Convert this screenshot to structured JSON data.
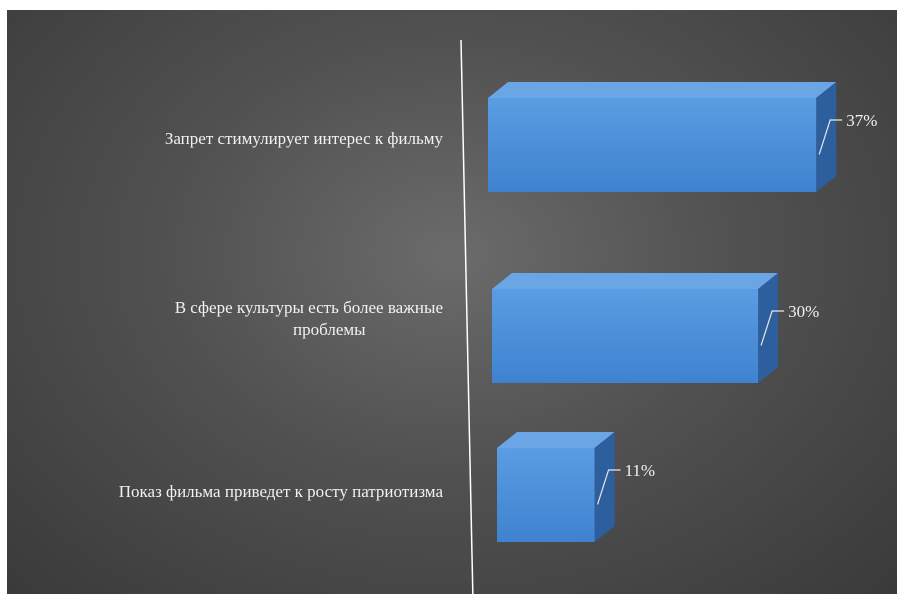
{
  "chart_data": {
    "type": "bar",
    "orientation": "horizontal",
    "style": "3d",
    "categories": [
      [
        "Запрет стимулирует интерес к фильму"
      ],
      [
        "В сфере культуры есть более важные",
        "проблемы"
      ],
      [
        "Показ фильма приведет к росту патриотизма"
      ]
    ],
    "values": [
      37,
      30,
      11
    ],
    "value_labels": [
      "37%",
      "30%",
      "11%"
    ],
    "xlim": [
      0,
      40
    ],
    "grid": false,
    "legend": "none",
    "colors": {
      "bar_front": "#4a8fd8",
      "bar_top": "#6aa5e6",
      "bar_side": "#2d5f9e",
      "background_center": "#6b6b6b",
      "background_edge": "#3a3a3a",
      "axis_line": "#ffffff",
      "text": "#f2f2f2"
    }
  }
}
